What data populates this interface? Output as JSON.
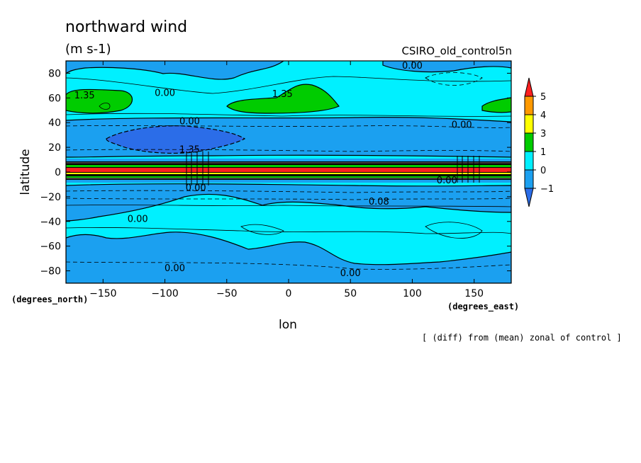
{
  "chart_data": {
    "type": "heatmap",
    "title": "northward wind",
    "units": "(m s-1)",
    "dataset": "CSIRO_old_control5n",
    "note": "[ (diff) from (mean) zonal of control ]",
    "xlabel": "lon",
    "ylabel": "latitude",
    "x_unit_label": "(degrees_east)",
    "y_unit_label": "(degrees_north)",
    "xlim": [
      -180,
      180
    ],
    "ylim": [
      -90,
      90
    ],
    "x_ticks": [
      -150,
      -100,
      -50,
      0,
      50,
      100,
      150
    ],
    "y_ticks": [
      80,
      60,
      40,
      20,
      0,
      -20,
      -40,
      -60,
      -80
    ],
    "colorbar": {
      "levels": [
        -1,
        0,
        1,
        3,
        4,
        5
      ],
      "colors": [
        "#2b6de8",
        "#1ba0f0",
        "#00f0ff",
        "#00cc00",
        "#ffff00",
        "#ff9900",
        "#ff1f1f"
      ]
    },
    "contour_labels": [
      {
        "text": "1.35",
        "lon": -165,
        "lat": 62
      },
      {
        "text": "0.00",
        "lon": -100,
        "lat": 64
      },
      {
        "text": "1.35",
        "lon": -5,
        "lat": 63
      },
      {
        "text": "0.00",
        "lon": 100,
        "lat": 86
      },
      {
        "text": "0.00",
        "lon": -80,
        "lat": 41
      },
      {
        "text": "0.00",
        "lon": 140,
        "lat": 38
      },
      {
        "text": "1.35",
        "lon": -80,
        "lat": 18
      },
      {
        "text": "0.00",
        "lon": 128,
        "lat": -7
      },
      {
        "text": "0.00",
        "lon": -75,
        "lat": -13
      },
      {
        "text": "0.08",
        "lon": 73,
        "lat": -24
      },
      {
        "text": "0.00",
        "lon": -122,
        "lat": -38
      },
      {
        "text": "0.00",
        "lon": -92,
        "lat": -78
      },
      {
        "text": "0.00",
        "lon": 50,
        "lat": -82
      }
    ],
    "regions": [
      {
        "level": 0,
        "note": "background 0 to 1 band"
      },
      {
        "level": -1,
        "note": "negative bands near 30N, 20S, polar south"
      },
      {
        "level": 1,
        "note": "positive patches near 60N"
      },
      {
        "level": 5,
        "note": "strong equatorial band"
      }
    ]
  }
}
